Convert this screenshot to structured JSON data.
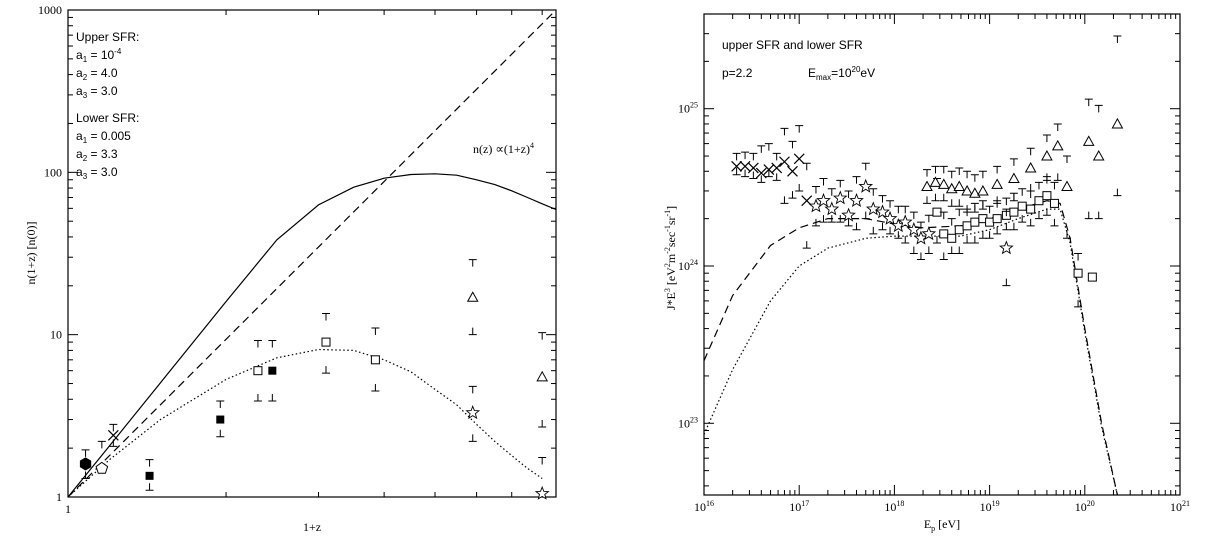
{
  "chart_data": [
    {
      "type": "line",
      "xlabel": "1+z",
      "ylabel": "n(1+z)   [n(0)]",
      "xscale": "log",
      "yscale": "log",
      "xlim": [
        1,
        8.5
      ],
      "ylim": [
        1,
        1000
      ],
      "xticks": [
        {
          "v": 1,
          "label": "1"
        }
      ],
      "yticks": [
        {
          "v": 1,
          "label": "1"
        },
        {
          "v": 10,
          "label": "10"
        },
        {
          "v": 100,
          "label": "100"
        },
        {
          "v": 1000,
          "label": "1000"
        }
      ],
      "annotations": {
        "upper_title": "Upper SFR:",
        "upper_a1": "a",
        "upper_a1_sub": "1",
        "upper_a1_val": " = 10",
        "upper_a1_exp": "-4",
        "upper_a2": "a",
        "upper_a2_sub": "2",
        "upper_a2_val": " = 4.0",
        "upper_a3": "a",
        "upper_a3_sub": "3",
        "upper_a3_val": " = 3.0",
        "lower_title": "Lower SFR:",
        "lower_a1": "a",
        "lower_a1_sub": "1",
        "lower_a1_val": " = 0.005",
        "lower_a2": "a",
        "lower_a2_sub": "2",
        "lower_a2_val": " = 3.3",
        "lower_a3": "a",
        "lower_a3_sub": "3",
        "lower_a3_val": " = 3.0",
        "law": "n(z) ∝(1+z)",
        "law_exp": "4"
      },
      "series": [
        {
          "style": "dashed",
          "x": [
            1,
            8.5
          ],
          "y": [
            1,
            5220
          ]
        },
        {
          "style": "solid",
          "x": [
            1,
            1.2,
            1.5,
            2,
            2.5,
            3,
            3.5,
            4,
            4.5,
            5,
            5.5,
            6,
            6.5,
            7,
            7.5,
            8,
            8.5
          ],
          "y": [
            1,
            2.07,
            5.06,
            16,
            38.4,
            63,
            81,
            92,
            97,
            98,
            96,
            90,
            84,
            77,
            70,
            64,
            59
          ]
        },
        {
          "style": "dotted",
          "x": [
            1,
            1.2,
            1.5,
            2,
            2.5,
            3,
            3.5,
            4,
            4.5,
            5,
            5.5,
            6,
            6.5,
            7,
            7.5,
            8
          ],
          "y": [
            1,
            1.7,
            3.0,
            5.3,
            7.2,
            8.1,
            8.0,
            7.0,
            5.9,
            4.6,
            3.7,
            2.8,
            2.2,
            1.8,
            1.5,
            1.3
          ]
        }
      ],
      "points": [
        {
          "marker": "filled-hexagon",
          "x": 1.08,
          "y": 1.6,
          "lo": 1.3,
          "hi": 1.95
        },
        {
          "marker": "open-pentagon",
          "x": 1.16,
          "y": 1.5,
          "lo": null,
          "hi": 2.2
        },
        {
          "marker": "cross",
          "x": 1.22,
          "y": 2.4,
          "lo": 2.05,
          "hi": 2.8
        },
        {
          "marker": "filled-square",
          "x": 1.43,
          "y": 1.35,
          "lo": 1.1,
          "hi": 1.7
        },
        {
          "marker": "filled-square",
          "x": 1.95,
          "y": 3.0,
          "lo": 2.35,
          "hi": 3.9
        },
        {
          "marker": "open-square",
          "x": 2.3,
          "y": 6.0,
          "lo": 3.9,
          "hi": 9.2
        },
        {
          "marker": "filled-square",
          "x": 2.45,
          "y": 6.0,
          "lo": 3.9,
          "hi": 9.2
        },
        {
          "marker": "open-square",
          "x": 3.1,
          "y": 9.0,
          "lo": 5.8,
          "hi": 13.5
        },
        {
          "marker": "open-square",
          "x": 3.85,
          "y": 7.0,
          "lo": 4.5,
          "hi": 11.0
        },
        {
          "marker": "open-triangle",
          "x": 5.9,
          "y": 17.0,
          "lo": 10.0,
          "hi": 29.0
        },
        {
          "marker": "open-star",
          "x": 5.9,
          "y": 3.3,
          "lo": 2.2,
          "hi": 4.8
        },
        {
          "marker": "open-triangle",
          "x": 8.0,
          "y": 5.5,
          "lo": 2.7,
          "hi": 10.3
        },
        {
          "marker": "open-star",
          "x": 8.0,
          "y": 1.05,
          "lo": null,
          "hi": 1.75
        }
      ]
    },
    {
      "type": "line",
      "xlabel": "E",
      "xlabel_sub": "p",
      "xlabel_rest": "   [eV]",
      "ylabel": "J*E",
      "ylabel_sup": "3",
      "ylabel_rest": "  [eV",
      "ylabel_unit": "m",
      "ylabel_unit2": "sec",
      "ylabel_unit3": "sr",
      "xscale": "log",
      "yscale": "log",
      "xlim": [
        1e+16,
        1e+21
      ],
      "ylim": [
        3.5e+22,
        4e+25
      ],
      "xticks": [
        {
          "v": 1e+16,
          "base": "10",
          "exp": "16"
        },
        {
          "v": 1e+17,
          "base": "10",
          "exp": "17"
        },
        {
          "v": 1e+18,
          "base": "10",
          "exp": "18"
        },
        {
          "v": 1e+19,
          "base": "10",
          "exp": "19"
        },
        {
          "v": 1e+20,
          "base": "10",
          "exp": "20"
        },
        {
          "v": 1e+21,
          "base": "10",
          "exp": "21"
        }
      ],
      "yticks": [
        {
          "v": 1e+23,
          "base": "10",
          "exp": "23"
        },
        {
          "v": 1e+24,
          "base": "10",
          "exp": "24"
        },
        {
          "v": 1e+25,
          "base": "10",
          "exp": "25"
        }
      ],
      "annotations": {
        "title": "upper SFR and lower SFR",
        "p": "p=2.2",
        "emax": "E",
        "emax_sub": "max",
        "emax_val": "=10",
        "emax_exp": "20",
        "emax_unit": "eV"
      },
      "series": [
        {
          "style": "dashed",
          "x": [
            1e+16,
            2e+16,
            5e+16,
            1e+17,
            2e+17,
            5e+17,
            1e+18,
            2e+18,
            5e+18,
            1e+19,
            2e+19,
            4e+19,
            5.5e+19,
            7e+19,
            1e+20,
            1.5e+20,
            2.2e+20
          ],
          "y": [
            2.5e+23,
            6.5e+23,
            1.35e+24,
            1.75e+24,
            2e+24,
            2e+24,
            1.85e+24,
            1.75e+24,
            1.8e+24,
            2e+24,
            2.3e+24,
            2.6e+24,
            2.5e+24,
            1.5e+24,
            4e+23,
            1e+23,
            3.5e+22
          ]
        },
        {
          "style": "dotted",
          "x": [
            1e+16,
            2e+16,
            5e+16,
            1e+17,
            2e+17,
            5e+17,
            1e+18,
            2e+18,
            5e+18,
            1e+19,
            2e+19,
            4e+19,
            5.5e+19,
            7e+19,
            1e+20,
            1.5e+20,
            2.2e+20
          ],
          "y": [
            8.5e+22,
            2.2e+23,
            6e+23,
            1e+24,
            1.3e+24,
            1.5e+24,
            1.55e+24,
            1.55e+24,
            1.55e+24,
            1.7e+24,
            2e+24,
            2.3e+24,
            2.3e+24,
            1.4e+24,
            3.8e+23,
            9.5e+22,
            3.5e+22
          ]
        }
      ],
      "points": [
        {
          "marker": "cross",
          "x": 2.2e+16,
          "y": 4.3e+24,
          "lo": 3.8e+24,
          "hi": 5.2e+24
        },
        {
          "marker": "cross",
          "x": 2.7e+16,
          "y": 4.3e+24,
          "lo": 3.7e+24,
          "hi": 5.3e+24
        },
        {
          "marker": "cross",
          "x": 3.3e+16,
          "y": 4.2e+24,
          "lo": 3.6e+24,
          "hi": 5.2e+24
        },
        {
          "marker": "cross",
          "x": 4e+16,
          "y": 3.9e+24,
          "lo": 3.4e+24,
          "hi": 5.8e+24
        },
        {
          "marker": "cross",
          "x": 4.8e+16,
          "y": 4.1e+24,
          "lo": 3.7e+24,
          "hi": 6e+24
        },
        {
          "marker": "cross",
          "x": 5.8e+16,
          "y": 4.2e+24,
          "lo": 3.5e+24,
          "hi": 5.2e+24
        },
        {
          "marker": "cross",
          "x": 7e+16,
          "y": 4.6e+24,
          "lo": 2.5e+24,
          "hi": 7.5e+24
        },
        {
          "marker": "cross",
          "x": 8.5e+16,
          "y": 4e+24,
          "lo": 2.7e+24,
          "hi": 6.2e+24
        },
        {
          "marker": "cross",
          "x": 1e+17,
          "y": 4.8e+24,
          "lo": 3e+24,
          "hi": 7.8e+24
        },
        {
          "marker": "cross",
          "x": 1.2e+17,
          "y": 2.6e+24,
          "lo": 1.3e+24,
          "hi": 4.5e+24
        },
        {
          "marker": "open-star",
          "x": 1.5e+17,
          "y": 2.4e+24,
          "lo": 1.8e+24,
          "hi": 3.2e+24
        },
        {
          "marker": "open-star",
          "x": 1.8e+17,
          "y": 2.6e+24,
          "lo": 1.9e+24,
          "hi": 3.6e+24
        },
        {
          "marker": "open-star",
          "x": 2.2e+17,
          "y": 2.3e+24,
          "lo": 1.9e+24,
          "hi": 3.1e+24
        },
        {
          "marker": "open-star",
          "x": 2.7e+17,
          "y": 2.7e+24,
          "lo": 1.9e+24,
          "hi": 3.5e+24
        },
        {
          "marker": "open-star",
          "x": 3.3e+17,
          "y": 2.1e+24,
          "lo": 1.8e+24,
          "hi": 3e+24
        },
        {
          "marker": "open-star",
          "x": 4e+17,
          "y": 2.6e+24,
          "lo": 1.7e+24,
          "hi": 3.7e+24
        },
        {
          "marker": "open-star",
          "x": 5e+17,
          "y": 3.2e+24,
          "lo": 2e+24,
          "hi": 4.5e+24
        },
        {
          "marker": "open-star",
          "x": 6e+17,
          "y": 2.3e+24,
          "lo": 1.6e+24,
          "hi": 3.1e+24
        },
        {
          "marker": "open-star",
          "x": 7.5e+17,
          "y": 2.2e+24,
          "lo": 1.7e+24,
          "hi": 2.8e+24
        },
        {
          "marker": "open-star",
          "x": 9e+17,
          "y": 2e+24,
          "lo": 1.6e+24,
          "hi": 2.6e+24
        },
        {
          "marker": "open-star",
          "x": 1.1e+18,
          "y": 1.8e+24,
          "lo": 1.5e+24,
          "hi": 2.4e+24
        },
        {
          "marker": "open-star",
          "x": 1.3e+18,
          "y": 1.9e+24,
          "lo": 1.4e+24,
          "hi": 2.4e+24
        },
        {
          "marker": "open-star",
          "x": 1.6e+18,
          "y": 1.7e+24,
          "lo": 1.2e+24,
          "hi": 2.2e+24
        },
        {
          "marker": "open-star",
          "x": 1.9e+18,
          "y": 1.5e+24,
          "lo": 1.1e+24,
          "hi": 1.9e+24
        },
        {
          "marker": "open-star",
          "x": 2.3e+18,
          "y": 1.6e+24,
          "lo": 1.2e+24,
          "hi": 2.1e+24
        },
        {
          "marker": "open-square",
          "x": 2.8e+18,
          "y": 2.2e+24,
          "lo": 1.4e+24,
          "hi": 3.6e+24
        },
        {
          "marker": "open-square",
          "x": 3.3e+18,
          "y": 1.6e+24,
          "lo": 1.1e+24,
          "hi": 2.2e+24
        },
        {
          "marker": "open-square",
          "x": 4e+18,
          "y": 1.5e+24,
          "lo": 1.2e+24,
          "hi": 2e+24
        },
        {
          "marker": "open-square",
          "x": 4.8e+18,
          "y": 1.7e+24,
          "lo": 1.2e+24,
          "hi": 2.3e+24
        },
        {
          "marker": "open-square",
          "x": 5.8e+18,
          "y": 1.8e+24,
          "lo": 1.4e+24,
          "hi": 2.3e+24
        },
        {
          "marker": "open-square",
          "x": 7e+18,
          "y": 1.9e+24,
          "lo": 1.4e+24,
          "hi": 2.5e+24
        },
        {
          "marker": "open-square",
          "x": 8.5e+18,
          "y": 2e+24,
          "lo": 1.5e+24,
          "hi": 2.6e+24
        },
        {
          "marker": "open-square",
          "x": 1e+19,
          "y": 1.9e+24,
          "lo": 1.5e+24,
          "hi": 2.4e+24
        },
        {
          "marker": "open-square",
          "x": 1.2e+19,
          "y": 2e+24,
          "lo": 1.6e+24,
          "hi": 2.6e+24
        },
        {
          "marker": "open-square",
          "x": 1.5e+19,
          "y": 2.1e+24,
          "lo": 1.7e+24,
          "hi": 2.7e+24
        },
        {
          "marker": "open-star",
          "x": 1.5e+19,
          "y": 1.3e+24,
          "lo": 7.5e+23,
          "hi": 2.3e+24
        },
        {
          "marker": "open-square",
          "x": 1.8e+19,
          "y": 2.2e+24,
          "lo": 1.7e+24,
          "hi": 2.9e+24
        },
        {
          "marker": "open-square",
          "x": 2.2e+19,
          "y": 2.4e+24,
          "lo": 1.9e+24,
          "hi": 3.1e+24
        },
        {
          "marker": "open-square",
          "x": 2.7e+19,
          "y": 2.3e+24,
          "lo": 1.8e+24,
          "hi": 3e+24
        },
        {
          "marker": "open-square",
          "x": 3.3e+19,
          "y": 2.6e+24,
          "lo": 2e+24,
          "hi": 3.4e+24
        },
        {
          "marker": "open-square",
          "x": 4e+19,
          "y": 2.8e+24,
          "lo": 2.1e+24,
          "hi": 3.7e+24
        },
        {
          "marker": "open-square",
          "x": 4.8e+19,
          "y": 2.5e+24,
          "lo": 1.8e+24,
          "hi": 3.4e+24
        },
        {
          "marker": "open-triangle",
          "x": 2.2e+18,
          "y": 3.2e+24,
          "lo": 2.5e+24,
          "hi": 4.1e+24
        },
        {
          "marker": "open-triangle",
          "x": 2.7e+18,
          "y": 3.4e+24,
          "lo": 2.6e+24,
          "hi": 4.3e+24
        },
        {
          "marker": "open-triangle",
          "x": 3.3e+18,
          "y": 3.3e+24,
          "lo": 2.6e+24,
          "hi": 4.3e+24
        },
        {
          "marker": "open-triangle",
          "x": 4e+18,
          "y": 3.1e+24,
          "lo": 2.4e+24,
          "hi": 4e+24
        },
        {
          "marker": "open-triangle",
          "x": 4.8e+18,
          "y": 3.2e+24,
          "lo": 2.4e+24,
          "hi": 4.2e+24
        },
        {
          "marker": "open-triangle",
          "x": 5.8e+18,
          "y": 3e+24,
          "lo": 2.2e+24,
          "hi": 4e+24
        },
        {
          "marker": "open-triangle",
          "x": 7e+18,
          "y": 2.9e+24,
          "lo": 2.2e+24,
          "hi": 3.8e+24
        },
        {
          "marker": "open-triangle",
          "x": 8.5e+18,
          "y": 3e+24,
          "lo": 2.3e+24,
          "hi": 4e+24
        },
        {
          "marker": "open-triangle",
          "x": 1.2e+19,
          "y": 3.3e+24,
          "lo": 2.5e+24,
          "hi": 4.3e+24
        },
        {
          "marker": "open-triangle",
          "x": 1.8e+19,
          "y": 3.6e+24,
          "lo": 2.6e+24,
          "hi": 4.8e+24
        },
        {
          "marker": "open-triangle",
          "x": 2.7e+19,
          "y": 4.2e+24,
          "lo": 3e+24,
          "hi": 5.6e+24
        },
        {
          "marker": "open-triangle",
          "x": 4e+19,
          "y": 5e+24,
          "lo": 3.5e+24,
          "hi": 6.8e+24
        },
        {
          "marker": "open-triangle",
          "x": 5.2e+19,
          "y": 5.8e+24,
          "lo": 3.5e+24,
          "hi": 8e+24
        },
        {
          "marker": "open-triangle",
          "x": 6.5e+19,
          "y": 3.2e+24,
          "lo": 1.5e+24,
          "hi": 5e+24
        },
        {
          "marker": "open-square",
          "x": 8.5e+19,
          "y": 9e+23,
          "lo": 5.5e+23,
          "hi": 1.2e+24
        },
        {
          "marker": "open-square",
          "x": 1.2e+20,
          "y": 8.5e+23,
          "lo": null,
          "hi": null
        },
        {
          "marker": "open-triangle",
          "x": 1.1e+20,
          "y": 6.2e+24,
          "lo": 2e+24,
          "hi": 1.15e+25
        },
        {
          "marker": "open-triangle",
          "x": 1.4e+20,
          "y": 5e+24,
          "lo": 2e+24,
          "hi": 1.05e+25
        },
        {
          "marker": "open-triangle",
          "x": 2.2e+20,
          "y": 8e+24,
          "lo": 2.8e+24,
          "hi": 2.9e+25
        }
      ]
    }
  ]
}
